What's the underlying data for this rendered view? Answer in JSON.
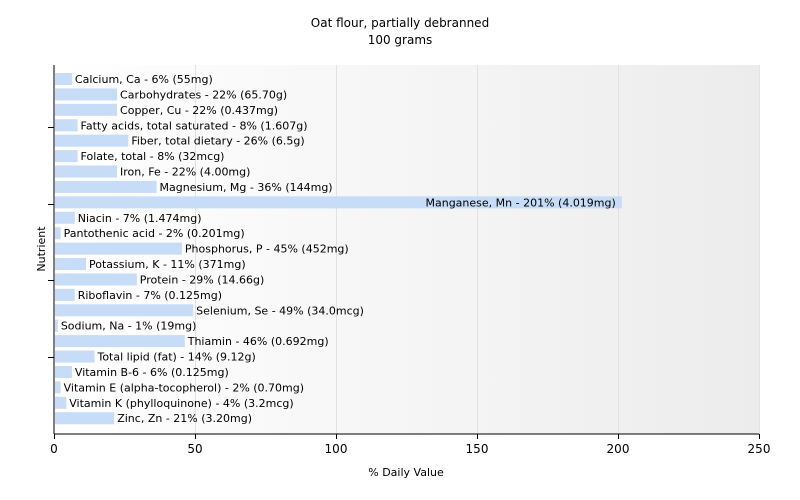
{
  "chart_data": {
    "type": "bar",
    "orientation": "horizontal",
    "title": "Oat flour, partially debranned",
    "subtitle": "100 grams",
    "xlabel": "% Daily Value",
    "ylabel": "Nutrient",
    "xlim": [
      0,
      250
    ],
    "xticks": [
      0,
      50,
      100,
      150,
      200,
      250
    ],
    "grid": true,
    "bar_color": "#c6dcf7",
    "categories": [
      "Calcium, Ca - 6% (55mg)",
      "Carbohydrates - 22% (65.70g)",
      "Copper, Cu - 22% (0.437mg)",
      "Fatty acids, total saturated - 8% (1.607g)",
      "Fiber, total dietary - 26% (6.5g)",
      "Folate, total - 8% (32mcg)",
      "Iron, Fe - 22% (4.00mg)",
      "Magnesium, Mg - 36% (144mg)",
      "Manganese, Mn - 201% (4.019mg)",
      "Niacin - 7% (1.474mg)",
      "Pantothenic acid - 2% (0.201mg)",
      "Phosphorus, P - 45% (452mg)",
      "Potassium, K - 11% (371mg)",
      "Protein - 29% (14.66g)",
      "Riboflavin - 7% (0.125mg)",
      "Selenium, Se - 49% (34.0mcg)",
      "Sodium, Na - 1% (19mg)",
      "Thiamin - 46% (0.692mg)",
      "Total lipid (fat) - 14% (9.12g)",
      "Vitamin B-6 - 6% (0.125mg)",
      "Vitamin E (alpha-tocopherol) - 2% (0.70mg)",
      "Vitamin K (phylloquinone) - 4% (3.2mcg)",
      "Zinc, Zn - 21% (3.20mg)"
    ],
    "values": [
      6,
      22,
      22,
      8,
      26,
      8,
      22,
      36,
      201,
      7,
      2,
      45,
      11,
      29,
      7,
      49,
      1,
      46,
      14,
      6,
      2,
      4,
      21
    ]
  }
}
